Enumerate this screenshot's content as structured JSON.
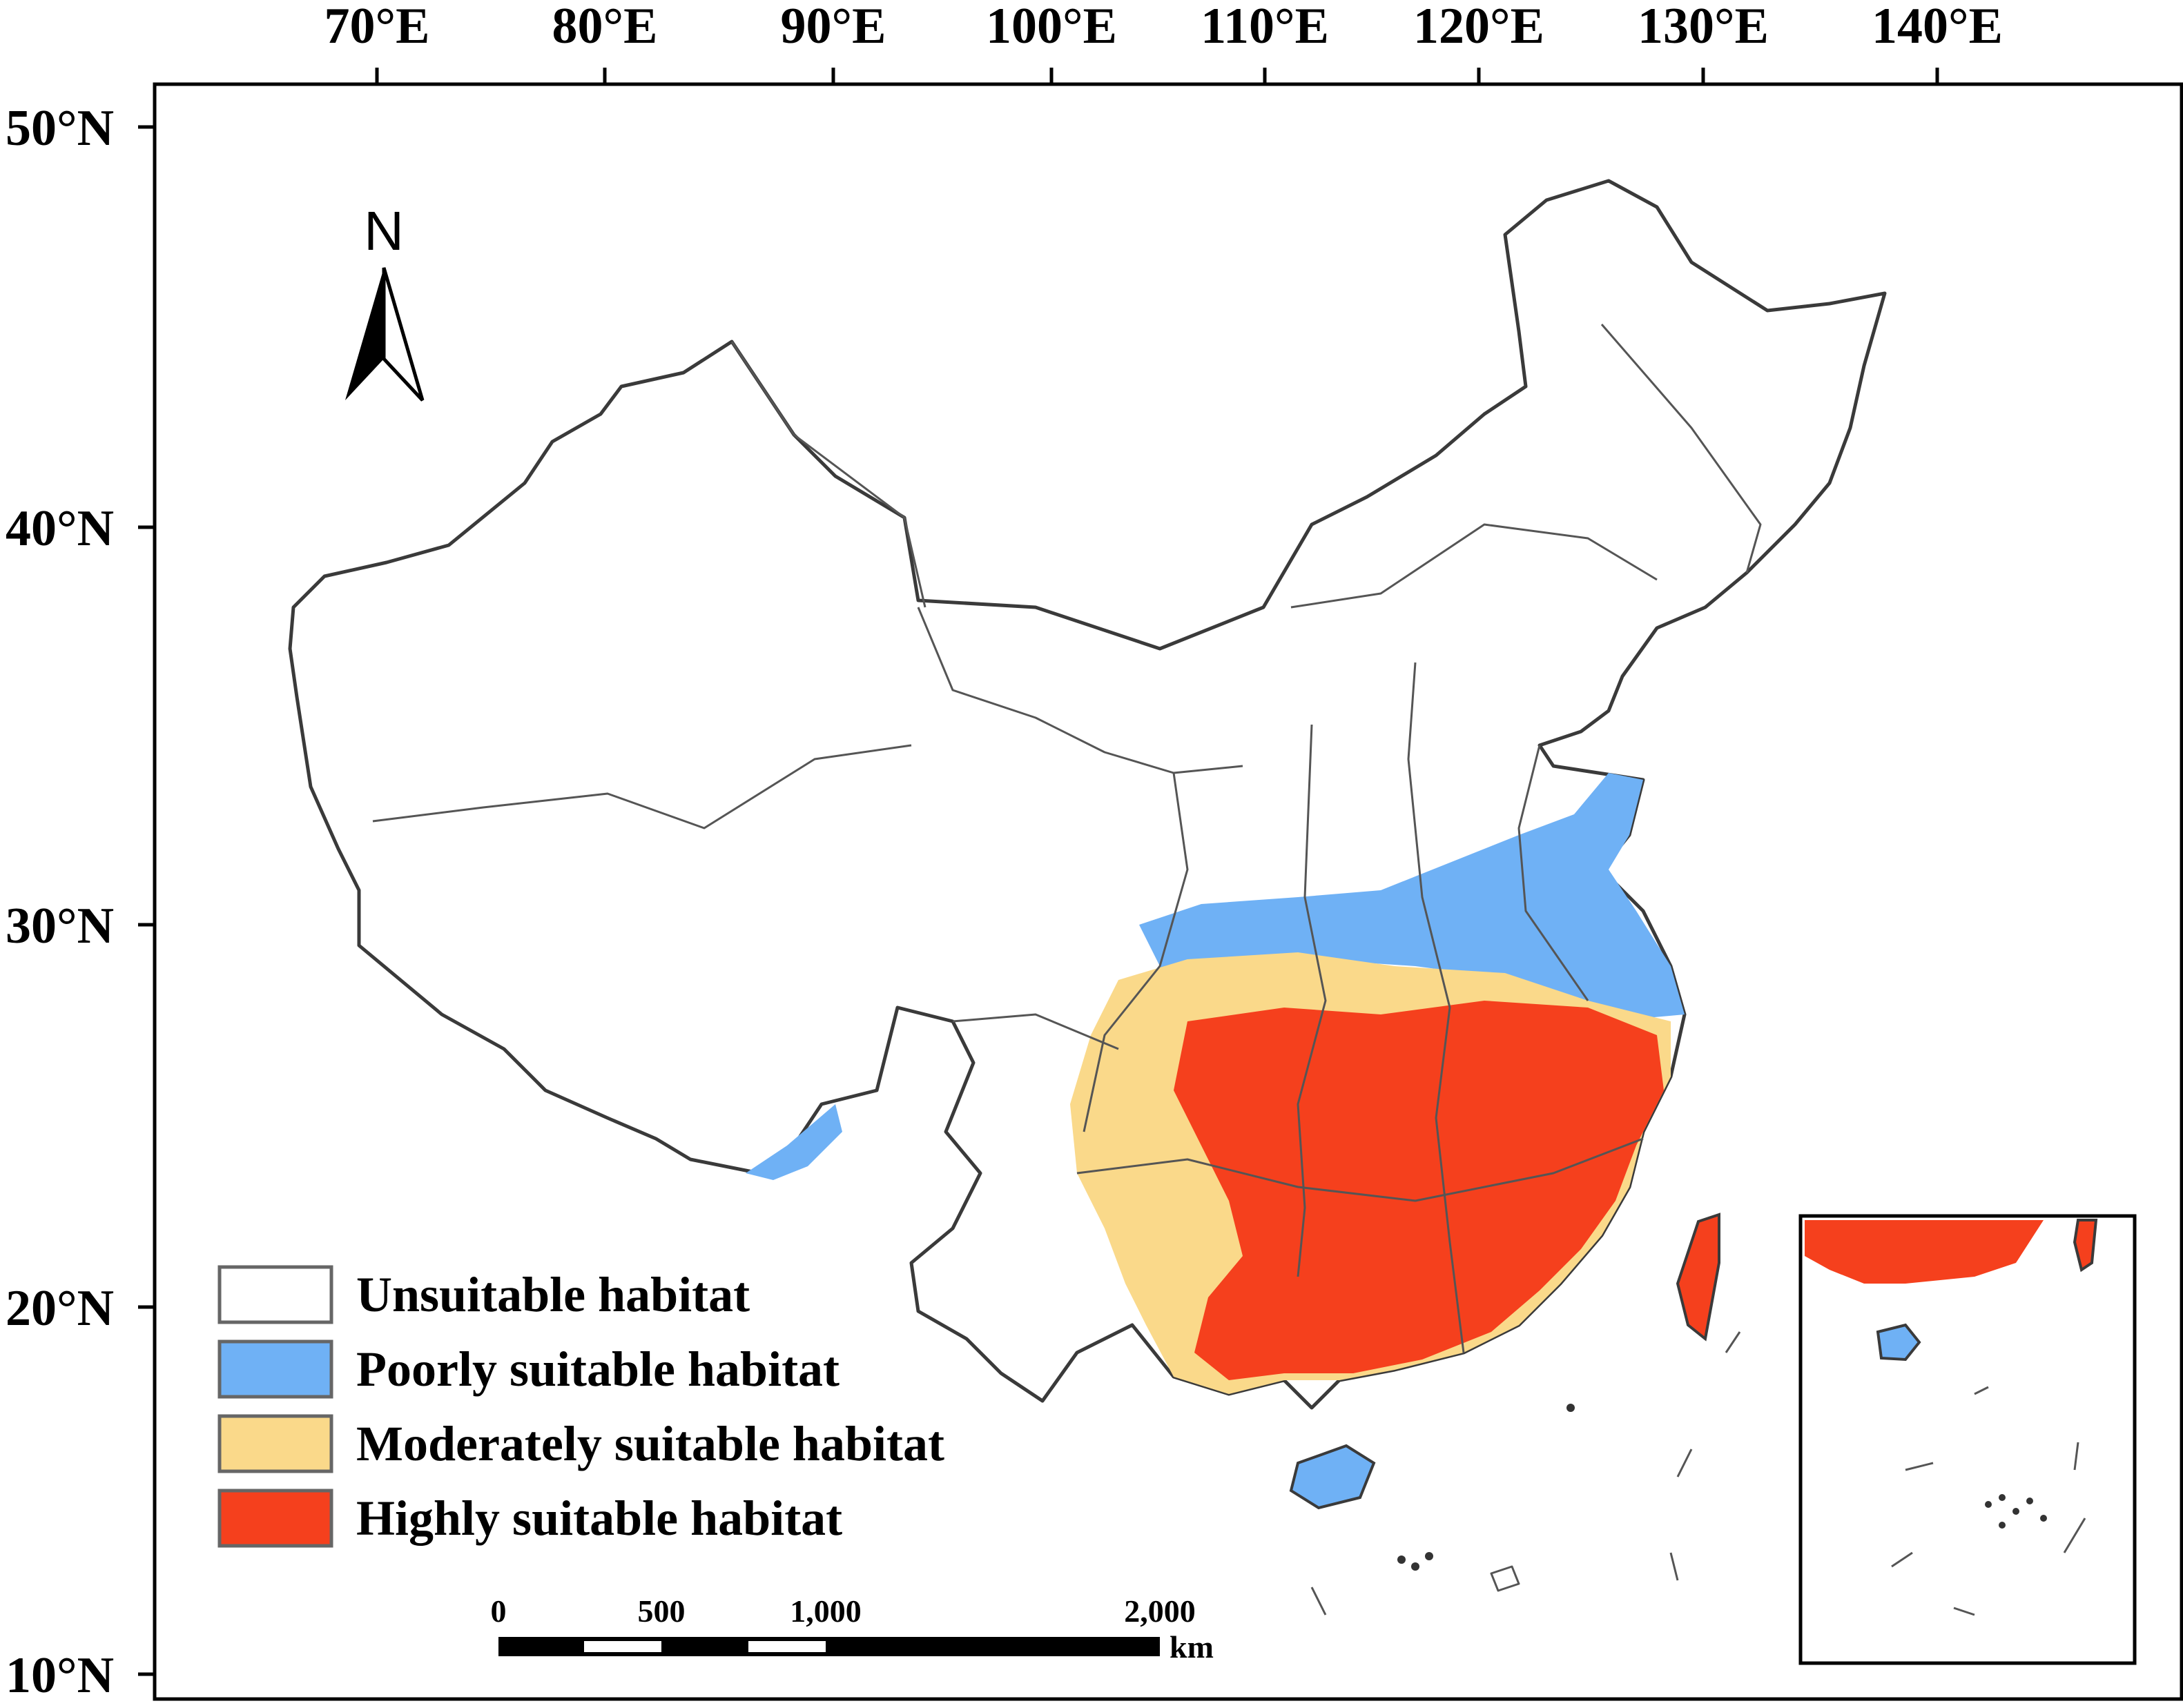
{
  "map": {
    "longitude_labels": [
      "70°E",
      "80°E",
      "90°E",
      "100°E",
      "110°E",
      "120°E",
      "130°E",
      "140°E"
    ],
    "latitude_labels": [
      "50°N",
      "40°N",
      "30°N",
      "20°N",
      "10°N"
    ],
    "north_arrow": {
      "label": "N",
      "icon": "north-arrow-icon"
    },
    "legend": [
      {
        "label": "Unsuitable habitat",
        "color": "#ffffff"
      },
      {
        "label": "Poorly suitable habitat",
        "color": "#6fb1f5"
      },
      {
        "label": "Moderately suitable habitat",
        "color": "#fad98a"
      },
      {
        "label": "Highly suitable habitat",
        "color": "#f5401d"
      }
    ],
    "scale_bar": {
      "ticks": [
        "0",
        "500",
        "1,000",
        "2,000"
      ],
      "unit": "km"
    }
  }
}
